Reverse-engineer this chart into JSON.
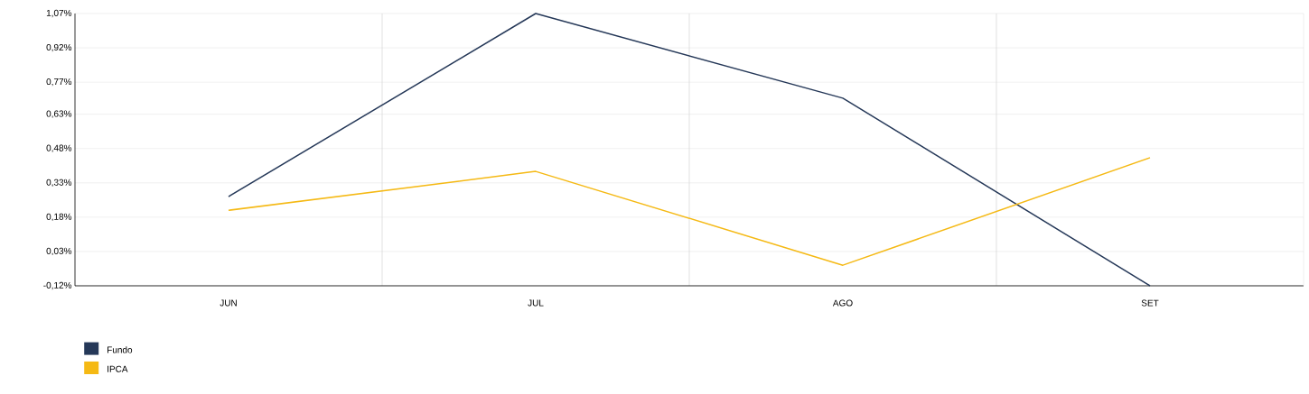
{
  "chart_data": {
    "type": "line",
    "categories": [
      "JUN",
      "JUL",
      "AGO",
      "SET"
    ],
    "series": [
      {
        "name": "Fundo",
        "color": "#253858",
        "values": [
          0.27,
          1.07,
          0.7,
          -0.12
        ]
      },
      {
        "name": "IPCA",
        "color": "#f5b914",
        "values": [
          0.21,
          0.38,
          -0.03,
          0.44
        ]
      }
    ],
    "ylim": [
      -0.12,
      1.07
    ],
    "yticks": [
      {
        "value": -0.12,
        "label": "-0,12%"
      },
      {
        "value": 0.03,
        "label": "0,03%"
      },
      {
        "value": 0.18,
        "label": "0,18%"
      },
      {
        "value": 0.33,
        "label": "0,33%"
      },
      {
        "value": 0.48,
        "label": "0,48%"
      },
      {
        "value": 0.63,
        "label": "0,63%"
      },
      {
        "value": 0.77,
        "label": "0,77%"
      },
      {
        "value": 0.92,
        "label": "0,92%"
      },
      {
        "value": 1.07,
        "label": "1,07%"
      }
    ],
    "grid": true,
    "legend": "bottom left",
    "marker": "none",
    "line_style": "solid"
  }
}
